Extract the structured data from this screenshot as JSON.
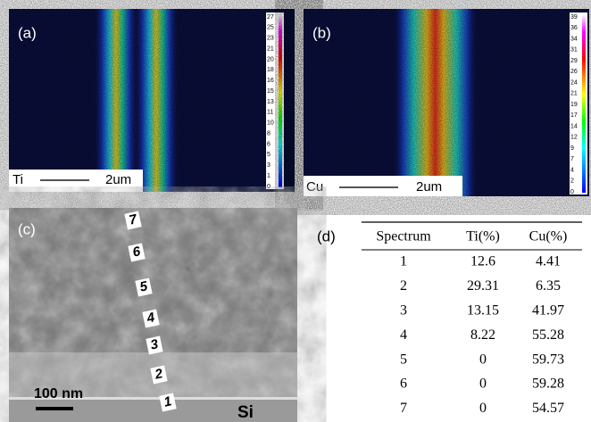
{
  "panels": {
    "a": {
      "label": "(a)",
      "element": "Ti",
      "scale": "2um",
      "colorbar": [
        27,
        25,
        23,
        21,
        20,
        18,
        16,
        15,
        13,
        11,
        10,
        8,
        6,
        5,
        3,
        1,
        0
      ]
    },
    "b": {
      "label": "(b)",
      "element": "Cu",
      "scale": "2um",
      "colorbar": [
        39,
        36,
        34,
        31,
        29,
        26,
        24,
        21,
        19,
        17,
        14,
        12,
        9,
        7,
        4,
        2,
        0
      ]
    },
    "c": {
      "label": "(c)",
      "points": [
        7,
        6,
        5,
        4,
        3,
        2,
        1
      ],
      "scale": "100 nm",
      "substrate": "Si"
    }
  },
  "table": {
    "label": "(d)",
    "columns": [
      "Spectrum",
      "Ti(%)",
      "Cu(%)"
    ],
    "rows": [
      [
        1,
        12.6,
        4.41
      ],
      [
        2,
        29.31,
        6.35
      ],
      [
        3,
        13.15,
        41.97
      ],
      [
        4,
        8.22,
        55.28
      ],
      [
        5,
        0,
        59.73
      ],
      [
        6,
        0,
        59.28
      ],
      [
        7,
        0,
        54.57
      ]
    ]
  }
}
